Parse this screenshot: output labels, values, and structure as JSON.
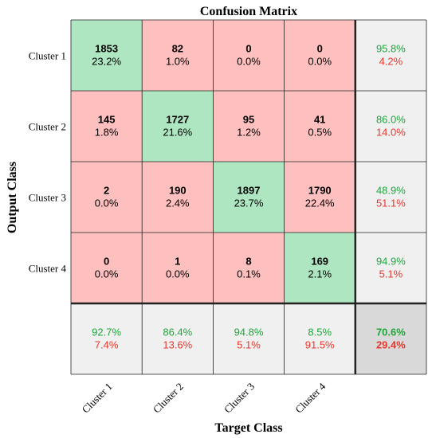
{
  "chart_data": {
    "type": "heatmap",
    "title": "Confusion Matrix",
    "xlabel": "Target Class",
    "ylabel": "Output Class",
    "row_labels": [
      "Cluster 1",
      "Cluster 2",
      "Cluster 3",
      "Cluster 4"
    ],
    "col_labels": [
      "Cluster 1",
      "Cluster 2",
      "Cluster 3",
      "Cluster 4"
    ],
    "cells": [
      [
        {
          "count": "1853",
          "percent": "23.2%"
        },
        {
          "count": "82",
          "percent": "1.0%"
        },
        {
          "count": "0",
          "percent": "0.0%"
        },
        {
          "count": "0",
          "percent": "0.0%"
        }
      ],
      [
        {
          "count": "145",
          "percent": "1.8%"
        },
        {
          "count": "1727",
          "percent": "21.6%"
        },
        {
          "count": "95",
          "percent": "1.2%"
        },
        {
          "count": "41",
          "percent": "0.5%"
        }
      ],
      [
        {
          "count": "2",
          "percent": "0.0%"
        },
        {
          "count": "190",
          "percent": "2.4%"
        },
        {
          "count": "1897",
          "percent": "23.7%"
        },
        {
          "count": "1790",
          "percent": "22.4%"
        }
      ],
      [
        {
          "count": "0",
          "percent": "0.0%"
        },
        {
          "count": "1",
          "percent": "0.0%"
        },
        {
          "count": "8",
          "percent": "0.1%"
        },
        {
          "count": "169",
          "percent": "2.1%"
        }
      ]
    ],
    "row_summary": [
      {
        "correct": "95.8%",
        "incorrect": "4.2%"
      },
      {
        "correct": "86.0%",
        "incorrect": "14.0%"
      },
      {
        "correct": "48.9%",
        "incorrect": "51.1%"
      },
      {
        "correct": "94.9%",
        "incorrect": "5.1%"
      }
    ],
    "col_summary": [
      {
        "correct": "92.7%",
        "incorrect": "7.4%"
      },
      {
        "correct": "86.4%",
        "incorrect": "13.6%"
      },
      {
        "correct": "94.8%",
        "incorrect": "5.1%"
      },
      {
        "correct": "8.5%",
        "incorrect": "91.5%"
      }
    ],
    "overall": {
      "correct": "70.6%",
      "incorrect": "29.4%"
    },
    "colors": {
      "diagonal": "#ade6c1",
      "off_diagonal": "#fdc0bf",
      "summary": "#f0f0f0",
      "overall": "#d9d9d9",
      "correct_text": "#1ea63c",
      "incorrect_text": "#e8382e"
    }
  }
}
